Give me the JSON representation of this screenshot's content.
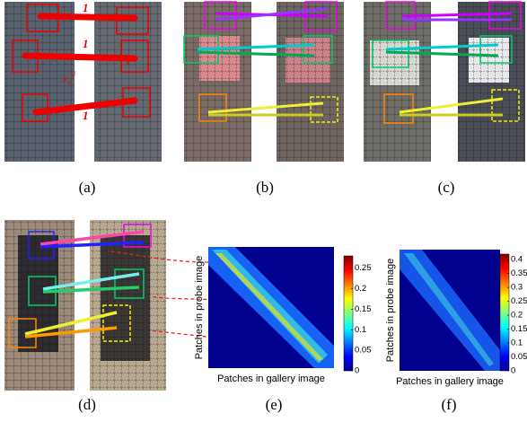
{
  "panels": [
    {
      "label": "(a)"
    },
    {
      "label": "(b)"
    },
    {
      "label": "(c)"
    },
    {
      "label": "(d)"
    },
    {
      "label": "(e)"
    },
    {
      "label": "(f)"
    }
  ],
  "panel_a": {
    "weights": [
      1,
      1,
      1
    ],
    "annotations": [
      {
        "base": "x",
        "sub": "s",
        "sup": "U"
      },
      {
        "base": "x",
        "sup": "V"
      }
    ]
  },
  "heatmaps": [
    {
      "xlabel": "Patches in gallery image",
      "ylabel": "Patches in probe image",
      "colorbar": {
        "range": [
          0,
          0.28
        ],
        "ticks": [
          0,
          0.05,
          0.1,
          0.15,
          0.2,
          0.25
        ]
      }
    },
    {
      "xlabel": "Patches in gallery image",
      "ylabel": "Patches in probe image",
      "colorbar": {
        "range": [
          0,
          0.42
        ],
        "ticks": [
          0,
          0.05,
          0.1,
          0.15,
          0.2,
          0.25,
          0.3,
          0.35,
          0.4
        ]
      }
    }
  ]
}
